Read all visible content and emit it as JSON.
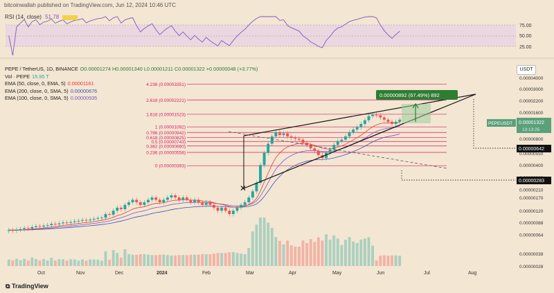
{
  "header": {
    "text": "bitcoinwallah published on TradingView.com, Jun 12, 2024 10:46 UTC"
  },
  "rsi": {
    "label": "RSI (14, close)",
    "value1": "51.78",
    "value2": "56.85",
    "ticks": [
      "75.00",
      "50.00",
      "25.00"
    ]
  },
  "legend": {
    "pair": "PEPE / TetherUS, 1D, BINANCE",
    "ohlc": "O0.00001274 H0.00001340 L0.00001211 C0.00001322 +0.00000048 (+3.77%)",
    "vol": "Vol · PEPE",
    "vol_value": "15.95 T",
    "ema50": "EMA (50, close, 0, EMA, 5)",
    "ema50_value": "0.00001161",
    "ema200": "EMA (200, close, 0, SMA, 5)",
    "ema200_value": "0.00000676",
    "ema100": "EMA (100, close, 0, SMA, 5)",
    "ema100_value": "0.00000935"
  },
  "currency": "USDT",
  "measure_label": "0.00000892 (67.49%) 892",
  "price_tag": {
    "symbol": "PEPEUSDT",
    "price": "0.00001322",
    "countdown": "13:13:25"
  },
  "level_tags": [
    "0.00000642",
    "0.00000283"
  ],
  "footer": {
    "brand": "TradingView"
  },
  "colors": {
    "background": "#f3e6d3",
    "up": "#26a69a",
    "down": "#ef5350",
    "ema50": "#e53935",
    "ema200": "#3f51b5",
    "ema100": "#7e57c2",
    "fib": "#d81b60",
    "rsi": "#7e57c2"
  },
  "chart_data": {
    "type": "candlestick",
    "price_scale": "log",
    "x_labels": [
      "Oct",
      "Nov",
      "Dec",
      "2024",
      "Feb",
      "Mar",
      "Apr",
      "May",
      "Jun",
      "Jul",
      "Aug"
    ],
    "y_ticks": [
      "0.00004000",
      "0.00003000",
      "0.00002200",
      "0.00001600",
      "0.00001150",
      "0.00000800",
      "0.00000550",
      "0.00000400",
      "0.00000290",
      "0.00000210",
      "0.00000170",
      "0.00000120",
      "0.00000088",
      "0.00000064",
      "0.00000039",
      "0.00000028"
    ],
    "fib_levels": [
      {
        "label": "4.236 (0.00003351)",
        "value": 3.351e-05
      },
      {
        "label": "2.618 (0.00002221)",
        "value": 2.221e-05
      },
      {
        "label": "1.618 (0.00001523)",
        "value": 1.523e-05
      },
      {
        "label": "1 (0.00001092)",
        "value": 1.092e-05
      },
      {
        "label": "0.786 (0.00000942)",
        "value": 9.42e-06
      },
      {
        "label": "0.618 (0.00000825)",
        "value": 8.25e-06
      },
      {
        "label": "0.5 (0.00000743)",
        "value": 7.43e-06
      },
      {
        "label": "0.382 (0.00000660)",
        "value": 6.6e-06
      },
      {
        "label": "0.236 (0.00000558)",
        "value": 5.58e-06
      },
      {
        "label": "0 (0.00000393)",
        "value": 3.93e-06
      }
    ],
    "close_prices": [
      7.2e-07,
      7.1e-07,
      7.3e-07,
      7.4e-07,
      7.6e-07,
      7.5e-07,
      7.8e-07,
      8e-07,
      7.9e-07,
      8.1e-07,
      8.2e-07,
      8.5e-07,
      8.4e-07,
      8.6e-07,
      8.8e-07,
      8.7e-07,
      8.9e-07,
      9.1e-07,
      9.2e-07,
      9.4e-07,
      9.3e-07,
      9.5e-07,
      9.7e-07,
      9.9e-07,
      1e-06,
      1.1e-06,
      1.08e-06,
      1.2e-06,
      1.3e-06,
      1.25e-06,
      1.4e-06,
      1.5e-06,
      1.6e-06,
      1.5e-06,
      1.4e-06,
      1.5e-06,
      1.6e-06,
      1.7e-06,
      1.6e-06,
      1.5e-06,
      1.6e-06,
      1.7e-06,
      1.8e-06,
      1.7e-06,
      1.6e-06,
      1.7e-06,
      1.6e-06,
      1.5e-06,
      1.6e-06,
      1.5e-06,
      1.4e-06,
      1.5e-06,
      1.4e-06,
      1.3e-06,
      1.2e-06,
      1.3e-06,
      1.2e-06,
      1.1e-06,
      1.2e-06,
      1.3e-06,
      1.4e-06,
      1.5e-06,
      1.7e-06,
      2e-06,
      2.5e-06,
      4e-06,
      5.5e-06,
      7e-06,
      8.5e-06,
      9.5e-06,
      8.8e-06,
      9.2e-06,
      8.5e-06,
      8.2e-06,
      8e-06,
      7.8e-06,
      7.2e-06,
      6.8e-06,
      6.2e-06,
      5.8e-06,
      5.2e-06,
      4.8e-06,
      5.5e-06,
      6e-06,
      6.8e-06,
      7.5e-06,
      7.8e-06,
      8.5e-06,
      9.5e-06,
      1.02e-05,
      1.08e-05,
      1.18e-05,
      1.3e-05,
      1.45e-05,
      1.5e-05,
      1.48e-05,
      1.4e-05,
      1.32e-05,
      1.25e-05,
      1.18e-05,
      1.25e-05,
      1.32e-05
    ]
  }
}
